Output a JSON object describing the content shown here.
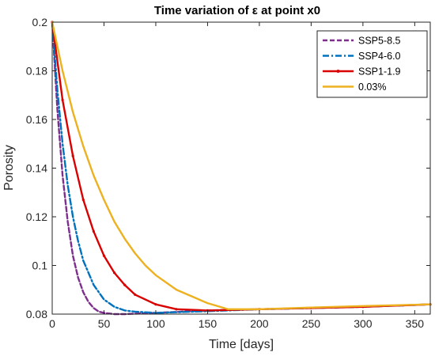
{
  "chart_data": {
    "type": "line",
    "title": "Time variation of ε at point x0",
    "xlabel": "Time [days]",
    "ylabel": "Porosity",
    "xlim": [
      0,
      365
    ],
    "ylim": [
      0.08,
      0.2
    ],
    "xticks": [
      0,
      50,
      100,
      150,
      200,
      250,
      300,
      350
    ],
    "yticks": [
      0.08,
      0.1,
      0.12,
      0.14,
      0.16,
      0.18,
      0.2
    ],
    "xtick_labels": [
      "0",
      "50",
      "100",
      "150",
      "200",
      "250",
      "300",
      "350"
    ],
    "ytick_labels": [
      "0.08",
      "0.1",
      "0.12",
      "0.14",
      "0.16",
      "0.18",
      "0.2"
    ],
    "grid": false,
    "legend_position": "top-right",
    "series": [
      {
        "name": "SSP5-8.5",
        "color": "#7E2F8E",
        "style": "dashed",
        "x": [
          0,
          5,
          10,
          15,
          20,
          25,
          30,
          35,
          40,
          45,
          50,
          60,
          70,
          100,
          150,
          200,
          250,
          300,
          365
        ],
        "y": [
          0.2,
          0.164,
          0.137,
          0.118,
          0.104,
          0.095,
          0.089,
          0.085,
          0.0825,
          0.081,
          0.0805,
          0.08,
          0.08,
          0.0805,
          0.0815,
          0.082,
          0.0825,
          0.083,
          0.084
        ]
      },
      {
        "name": "SSP4-6.0",
        "color": "#0072BD",
        "style": "dashdot",
        "x": [
          0,
          5,
          10,
          15,
          20,
          25,
          30,
          40,
          50,
          60,
          70,
          80,
          100,
          150,
          200,
          250,
          300,
          365
        ],
        "y": [
          0.2,
          0.172,
          0.15,
          0.133,
          0.12,
          0.11,
          0.102,
          0.092,
          0.086,
          0.083,
          0.0815,
          0.081,
          0.0805,
          0.0812,
          0.082,
          0.0825,
          0.083,
          0.084
        ]
      },
      {
        "name": "SSP1-1.9",
        "color": "#D90000",
        "style": "solid-markers",
        "x": [
          0,
          10,
          20,
          30,
          40,
          50,
          60,
          70,
          80,
          100,
          120,
          150,
          200,
          250,
          300,
          365
        ],
        "y": [
          0.2,
          0.168,
          0.145,
          0.127,
          0.114,
          0.104,
          0.097,
          0.092,
          0.088,
          0.084,
          0.082,
          0.0815,
          0.082,
          0.0825,
          0.083,
          0.084
        ]
      },
      {
        "name": "0.03%",
        "color": "#EDB120",
        "style": "solid",
        "x": [
          0,
          10,
          20,
          30,
          40,
          50,
          60,
          70,
          80,
          90,
          100,
          120,
          150,
          170,
          200,
          250,
          300,
          365
        ],
        "y": [
          0.2,
          0.18,
          0.163,
          0.149,
          0.137,
          0.127,
          0.118,
          0.111,
          0.105,
          0.1,
          0.096,
          0.09,
          0.0845,
          0.082,
          0.082,
          0.0827,
          0.0833,
          0.084
        ]
      }
    ]
  }
}
